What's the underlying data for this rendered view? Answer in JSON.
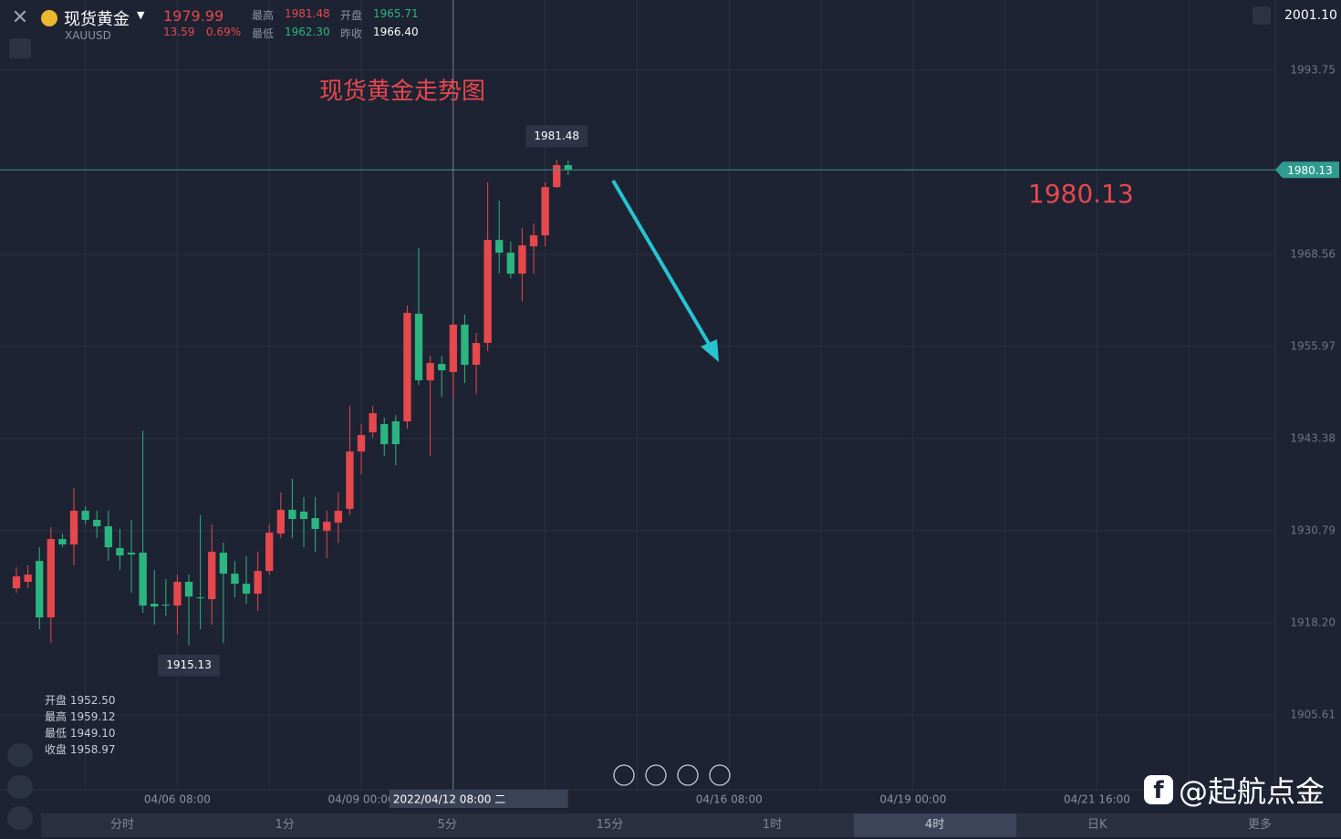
{
  "header": {
    "name": "现货黄金",
    "symbol": "XAUUSD",
    "price": "1979.99",
    "change": "13.59",
    "change_pct": "0.69%",
    "stats": [
      {
        "label": "最高",
        "value": "1981.48"
      },
      {
        "label": "开盘",
        "value": "1965.71"
      },
      {
        "label": "最低",
        "value": "1962.30"
      },
      {
        "label": "昨收",
        "value": "1966.40"
      }
    ],
    "right_value": "2001.10"
  },
  "chart_data": {
    "type": "candlestick",
    "title": "现货黄金走势图",
    "up_color": "#e5484d",
    "down_color": "#2bb57f",
    "grid": true,
    "open": [
      1922.93,
      1923.81,
      1926.67,
      1918.95,
      1929.67,
      1928.92,
      1933.53,
      1932.28,
      1931.41,
      1928.42,
      1927.8,
      1927.8,
      1920.82,
      1920.69,
      1920.57,
      1923.81,
      1921.69,
      1921.44,
      1927.8,
      1924.93,
      1923.56,
      1922.19,
      1925.3,
      1930.41,
      1933.66,
      1933.41,
      1932.53,
      1930.79,
      1931.91,
      1933.78,
      1941.63,
      1944.25,
      1945.37,
      1945.75,
      1945.75,
      1960.46,
      1951.36,
      1953.6,
      1952.5,
      1958.97,
      1953.48,
      1956.47,
      1970.55,
      1968.81,
      1965.94,
      1969.68,
      1971.18,
      1977.78,
      1980.78
    ],
    "high": [
      1925.8,
      1926.05,
      1928.54,
      1931.29,
      1930.41,
      1936.65,
      1934.15,
      1933.53,
      1933.53,
      1931.04,
      1932.28,
      1944.5,
      1925.43,
      1924.18,
      1924.8,
      1924.8,
      1932.91,
      1931.66,
      1929.17,
      1926.67,
      1927.3,
      1927.92,
      1931.66,
      1936.02,
      1937.89,
      1935.4,
      1935.4,
      1933.53,
      1936.02,
      1947.87,
      1945.37,
      1947.87,
      1946.25,
      1946.62,
      1961.58,
      1969.43,
      1954.72,
      1954.72,
      1959.12,
      1960.33,
      1957.84,
      1978.41,
      1975.91,
      1970.31,
      1972.18,
      1972.8,
      1978.41,
      1981.48,
      1981.4
    ],
    "low": [
      1922.31,
      1922.93,
      1917.32,
      1915.45,
      1928.54,
      1926.05,
      1931.66,
      1929.79,
      1926.67,
      1925.43,
      1922.31,
      1919.57,
      1917.95,
      1919.19,
      1916.7,
      1915.13,
      1917.32,
      1917.95,
      1915.45,
      1921.69,
      1920.82,
      1919.82,
      1924.8,
      1929.79,
      1929.79,
      1928.54,
      1927.92,
      1927.05,
      1929.17,
      1932.91,
      1938.52,
      1943.5,
      1941.01,
      1939.76,
      1944.75,
      1950.73,
      1941.01,
      1949.11,
      1949.1,
      1950.98,
      1949.49,
      1955.35,
      1965.94,
      1965.32,
      1962.2,
      1965.94,
      1969.68,
      1977.66,
      1979.41
    ],
    "close": [
      1924.55,
      1924.8,
      1918.95,
      1929.67,
      1928.92,
      1933.53,
      1932.28,
      1931.41,
      1928.54,
      1927.42,
      1927.55,
      1920.57,
      1920.44,
      1920.57,
      1923.81,
      1921.81,
      1921.56,
      1927.92,
      1924.93,
      1923.56,
      1922.19,
      1925.3,
      1930.54,
      1933.66,
      1932.41,
      1932.41,
      1931.04,
      1932.03,
      1933.53,
      1941.63,
      1943.88,
      1946.87,
      1942.63,
      1942.63,
      1960.58,
      1951.36,
      1953.73,
      1952.73,
      1958.97,
      1953.48,
      1956.47,
      1970.55,
      1968.81,
      1965.94,
      1969.81,
      1971.18,
      1977.78,
      1980.78,
      1980.13
    ],
    "ylim": [
      1895.39,
      2003.35
    ],
    "yticks": [
      1905.61,
      {
        "value": 1918.2,
        "label": "1918.20"
      },
      1930.79,
      1943.38,
      1955.97,
      1968.56,
      1993.75
    ],
    "xlim": [
      -1.43,
      109.52
    ],
    "xticks": [
      {
        "value": 6,
        "label": null
      },
      {
        "value": 14,
        "label": "04/06 08:00"
      },
      {
        "value": 22,
        "label": null
      },
      {
        "value": 30,
        "label": "04/09 00:00"
      },
      {
        "value": 38,
        "label": null
      },
      {
        "value": 46,
        "label": null
      },
      {
        "value": 54,
        "label": null
      },
      {
        "value": 62,
        "label": "04/16 08:00"
      },
      {
        "value": 70,
        "label": null
      },
      {
        "value": 78,
        "label": "04/19 00:00"
      },
      {
        "value": 86,
        "label": null
      },
      {
        "value": 94,
        "label": "04/21 16:00"
      },
      {
        "value": 102,
        "label": null
      }
    ],
    "crosshair_label": "2022/04/12 08:00 二",
    "ohlc_panel": [
      {
        "label": "开盘",
        "value": "1952.50"
      },
      {
        "label": "最高",
        "value": "1959.12"
      },
      {
        "label": "最低",
        "value": "1949.10"
      },
      {
        "label": "收盘",
        "value": "1958.97"
      }
    ]
  },
  "tabs": [
    "分时",
    "1分",
    "5分",
    "15分",
    "1时",
    "4时",
    "日K",
    "更多"
  ],
  "watermark": "@起航点金"
}
